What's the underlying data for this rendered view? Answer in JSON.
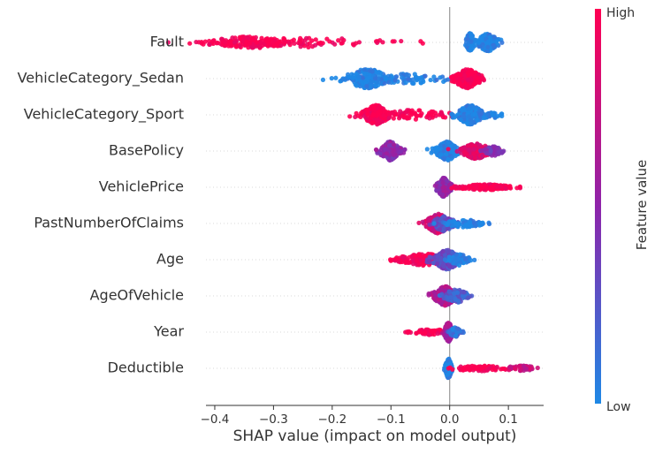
{
  "chart_data": {
    "type": "scatter",
    "subtype": "shap-beeswarm",
    "xlabel": "SHAP value (impact on model output)",
    "xlim": [
      -0.415,
      0.16
    ],
    "xticks": [
      -0.4,
      -0.3,
      -0.2,
      -0.1,
      0.0,
      0.1
    ],
    "xtick_labels": [
      "−0.4",
      "−0.3",
      "−0.2",
      "−0.1",
      "0.0",
      "0.1"
    ],
    "zero_line": 0.0,
    "grid": false,
    "features": [
      {
        "name": "Fault",
        "groups": [
          {
            "center": -0.34,
            "spread": 0.04,
            "width": 0.6,
            "count": 180,
            "color": 1.0
          },
          {
            "center": -0.24,
            "spread": 0.07,
            "width": 0.5,
            "count": 70,
            "color": 1.0
          },
          {
            "center": 0.035,
            "spread": 0.004,
            "width": 1.0,
            "count": 60,
            "color": 0.0
          },
          {
            "center": 0.065,
            "spread": 0.01,
            "width": 0.9,
            "count": 160,
            "color": 0.0
          }
        ]
      },
      {
        "name": "VehicleCategory_Sedan",
        "groups": [
          {
            "center": -0.14,
            "spread": 0.02,
            "width": 1.0,
            "count": 170,
            "color": 0.0
          },
          {
            "center": -0.07,
            "spread": 0.05,
            "width": 0.5,
            "count": 80,
            "color": 0.0
          },
          {
            "center": 0.03,
            "spread": 0.012,
            "width": 1.0,
            "count": 220,
            "color": 1.0
          }
        ]
      },
      {
        "name": "VehicleCategory_Sport",
        "groups": [
          {
            "center": -0.125,
            "spread": 0.012,
            "width": 1.0,
            "count": 170,
            "color": 1.0
          },
          {
            "center": -0.06,
            "spread": 0.04,
            "width": 0.5,
            "count": 80,
            "color": 1.0
          },
          {
            "center": 0.035,
            "spread": 0.012,
            "width": 1.0,
            "count": 220,
            "color": 0.0
          },
          {
            "center": 0.07,
            "spread": 0.01,
            "width": 0.4,
            "count": 30,
            "color": 0.0
          }
        ]
      },
      {
        "name": "BasePolicy",
        "groups": [
          {
            "center": -0.102,
            "spread": 0.009,
            "width": 1.0,
            "count": 160,
            "color": 0.5
          },
          {
            "center": -0.005,
            "spread": 0.01,
            "width": 1.0,
            "count": 160,
            "color": 0.0
          },
          {
            "center": 0.045,
            "spread": 0.014,
            "width": 0.8,
            "count": 200,
            "color": 0.85
          },
          {
            "center": 0.075,
            "spread": 0.008,
            "width": 0.5,
            "count": 50,
            "color": 0.4
          }
        ]
      },
      {
        "name": "VehiclePrice",
        "groups": [
          {
            "center": -0.01,
            "spread": 0.006,
            "width": 1.0,
            "count": 200,
            "color": 0.5
          },
          {
            "center": 0.06,
            "spread": 0.025,
            "width": 0.3,
            "count": 170,
            "color": 1.0
          }
        ]
      },
      {
        "name": "PastNumberOfClaims",
        "groups": [
          {
            "center": -0.02,
            "spread": 0.011,
            "width": 1.0,
            "count": 200,
            "color": 0.8
          },
          {
            "center": -0.01,
            "spread": 0.01,
            "width": 0.8,
            "count": 100,
            "color": 0.3
          },
          {
            "center": 0.025,
            "spread": 0.018,
            "width": 0.4,
            "count": 90,
            "color": 0.0
          }
        ]
      },
      {
        "name": "Age",
        "groups": [
          {
            "center": -0.04,
            "spread": 0.03,
            "width": 0.6,
            "count": 170,
            "color": 1.0
          },
          {
            "center": -0.005,
            "spread": 0.012,
            "width": 1.0,
            "count": 220,
            "color": 0.3
          },
          {
            "center": 0.015,
            "spread": 0.01,
            "width": 0.6,
            "count": 60,
            "color": 0.0
          }
        ]
      },
      {
        "name": "AgeOfVehicle",
        "groups": [
          {
            "center": -0.008,
            "spread": 0.01,
            "width": 1.0,
            "count": 220,
            "color": 0.65
          },
          {
            "center": 0.01,
            "spread": 0.012,
            "width": 0.7,
            "count": 90,
            "color": 0.2
          }
        ]
      },
      {
        "name": "Year",
        "groups": [
          {
            "center": -0.03,
            "spread": 0.02,
            "width": 0.3,
            "count": 70,
            "color": 1.0
          },
          {
            "center": -0.002,
            "spread": 0.004,
            "width": 1.0,
            "count": 200,
            "color": 0.6
          },
          {
            "center": 0.01,
            "spread": 0.006,
            "width": 0.5,
            "count": 50,
            "color": 0.1
          }
        ]
      },
      {
        "name": "Deductible",
        "groups": [
          {
            "center": -0.002,
            "spread": 0.003,
            "width": 1.0,
            "count": 140,
            "color": 0.0
          },
          {
            "center": 0.05,
            "spread": 0.025,
            "width": 0.3,
            "count": 80,
            "color": 1.0
          },
          {
            "center": 0.12,
            "spread": 0.015,
            "width": 0.3,
            "count": 40,
            "color": 0.75
          }
        ]
      }
    ],
    "colorbar": {
      "label": "Feature value",
      "high_label": "High",
      "low_label": "Low",
      "low_color": "#1e88e5",
      "mid_color": "#8e24aa",
      "high_color": "#ff0052"
    }
  }
}
